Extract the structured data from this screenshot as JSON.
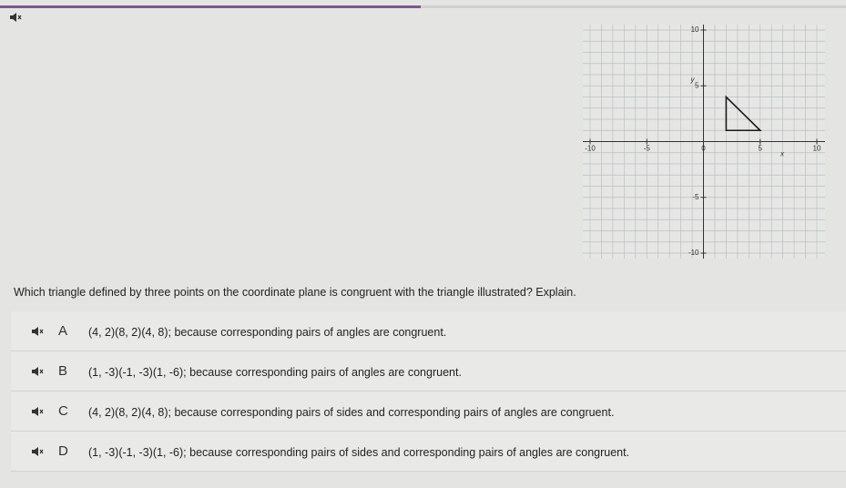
{
  "question": "Which triangle defined by three points on the coordinate plane is congruent with the triangle illustrated? Explain.",
  "graph": {
    "xlim": [
      -10,
      10
    ],
    "ylim": [
      -10,
      10
    ],
    "xticks": [
      -10,
      -5,
      0,
      5,
      10
    ],
    "yticks": [
      10,
      5,
      -5,
      -10
    ],
    "x_label": "x",
    "y_label": "y",
    "grid": true,
    "triangle": [
      [
        2,
        4
      ],
      [
        2,
        1
      ],
      [
        5,
        1
      ]
    ]
  },
  "options": [
    {
      "letter": "A",
      "text": "(4, 2)(8, 2)(4, 8); because corresponding pairs of angles are congruent."
    },
    {
      "letter": "B",
      "text": "(1, -3)(-1, -3)(1, -6); because corresponding pairs of angles are congruent."
    },
    {
      "letter": "C",
      "text": "(4, 2)(8, 2)(4, 8); because corresponding pairs of sides and corresponding pairs of angles are congruent."
    },
    {
      "letter": "D",
      "text": "(1, -3)(-1, -3)(1, -6); because corresponding pairs of sides and corresponding pairs of angles are congruent."
    }
  ]
}
